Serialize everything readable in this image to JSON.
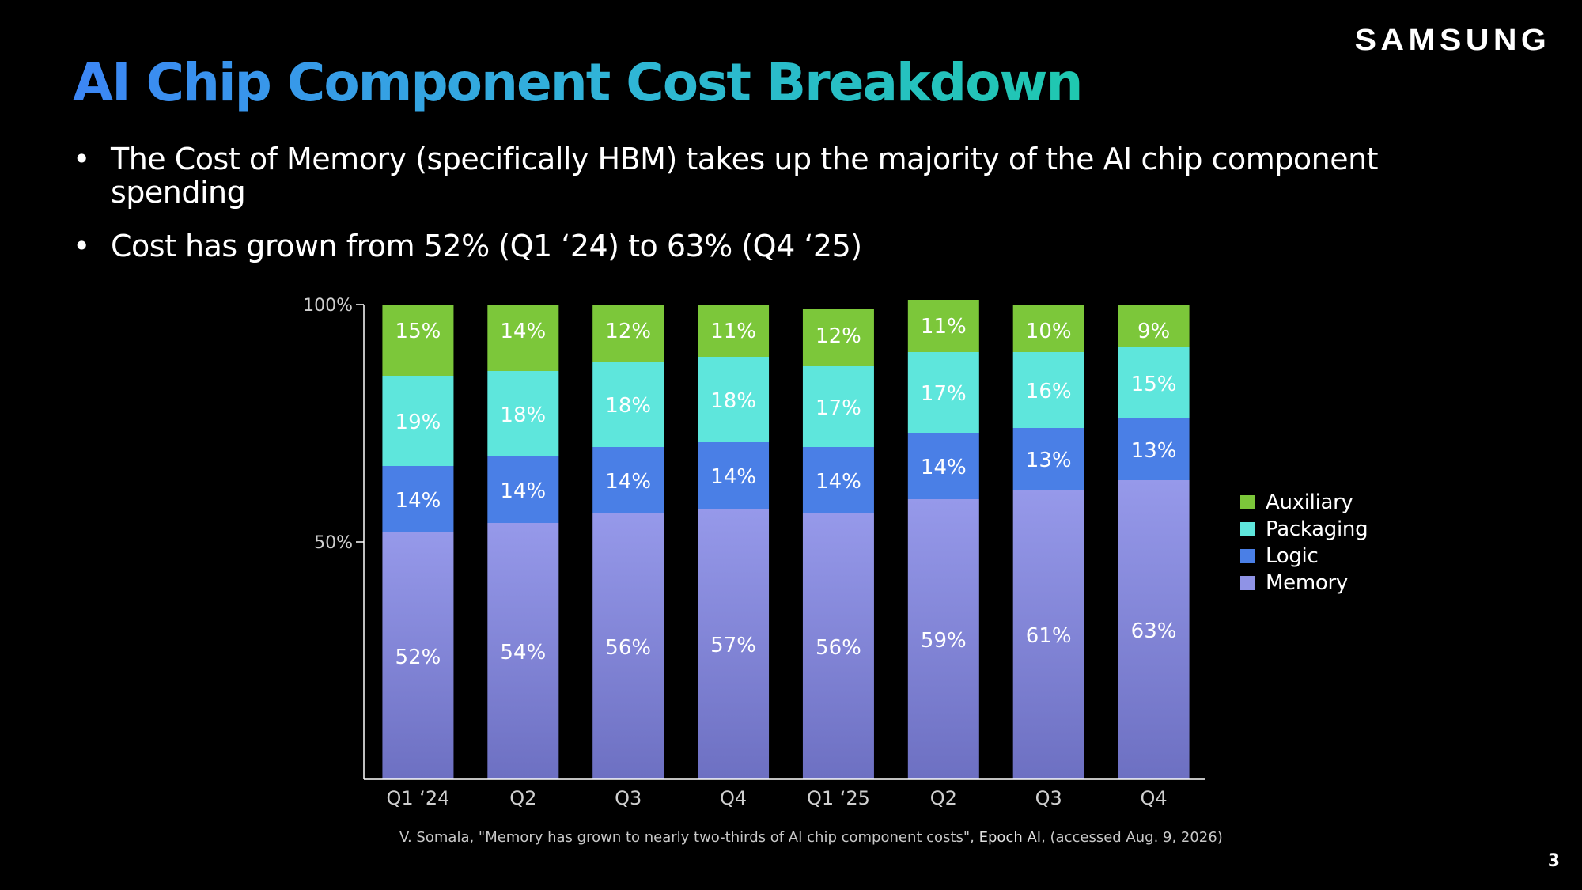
{
  "brand": {
    "logo_text": "SAMSUNG"
  },
  "slide": {
    "title": "AI Chip Component Cost Breakdown",
    "bullets": [
      "The Cost of Memory (specifically HBM) takes up the majority of the AI chip component spending",
      "Cost has grown from 52% (Q1 ‘24) to 63% (Q4 ‘25)"
    ],
    "bullet_symbol": "•",
    "source_prefix": "V. Somala, \"Memory has grown to nearly two-thirds of AI chip component costs\", ",
    "source_link": "Epoch AI",
    "source_suffix": ", (accessed Aug. 9, 2026)",
    "page_number": "3"
  },
  "colors": {
    "title_gradient_start": "#3c86f5",
    "title_gradient_end": "#1fc8b0",
    "memory": "#8f93e6",
    "logic": "#4a7fe6",
    "packaging": "#5ee6dc",
    "auxiliary": "#7cc73a",
    "axis": "#ffffff",
    "tick_text": "#cfcfcf"
  },
  "chart_data": {
    "type": "bar",
    "stacked": true,
    "categories": [
      "Q1 ‘24",
      "Q2",
      "Q3",
      "Q4",
      "Q1 ‘25",
      "Q2",
      "Q3",
      "Q4"
    ],
    "series": [
      {
        "name": "Memory",
        "values": [
          52,
          54,
          56,
          57,
          56,
          59,
          61,
          63
        ],
        "labels": [
          "52%",
          "54%",
          "56%",
          "57%",
          "56%",
          "59%",
          "61%",
          "63%"
        ]
      },
      {
        "name": "Logic",
        "values": [
          14,
          14,
          14,
          14,
          14,
          14,
          13,
          13
        ],
        "labels": [
          "14%",
          "14%",
          "14%",
          "14%",
          "14%",
          "14%",
          "13%",
          "13%"
        ]
      },
      {
        "name": "Packaging",
        "values": [
          19,
          18,
          18,
          18,
          17,
          17,
          16,
          15
        ],
        "labels": [
          "19%",
          "18%",
          "18%",
          "18%",
          "17%",
          "17%",
          "16%",
          "15%"
        ]
      },
      {
        "name": "Auxiliary",
        "values": [
          15,
          14,
          12,
          11,
          12,
          11,
          10,
          9
        ],
        "labels": [
          "15%",
          "14%",
          "12%",
          "11%",
          "12%",
          "11%",
          "10%",
          "9%"
        ]
      }
    ],
    "yticks": [
      "100%",
      "50%"
    ],
    "ytick_values": [
      100,
      50
    ],
    "ylim": [
      0,
      100
    ],
    "grid": false,
    "legend_placement": "right",
    "legend_order": [
      "Auxiliary",
      "Packaging",
      "Logic",
      "Memory"
    ]
  }
}
